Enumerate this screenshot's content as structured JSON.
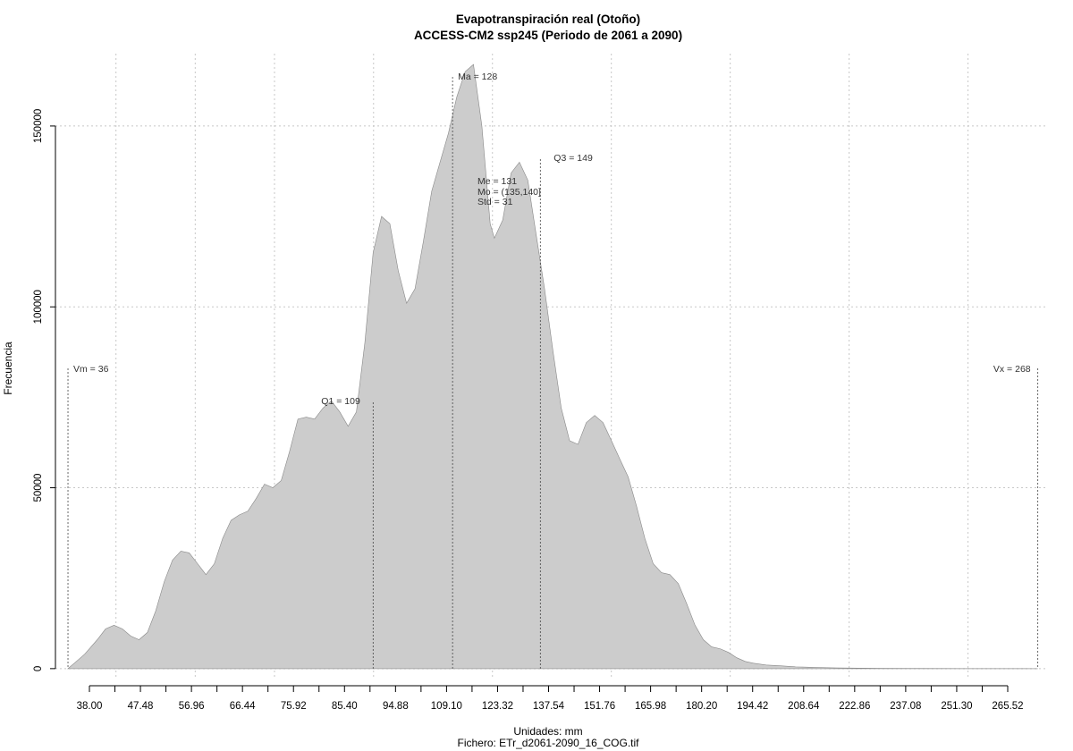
{
  "chart_data": {
    "type": "area",
    "title": "Evapotranspiración real (Otoño)",
    "subtitle": "ACCESS-CM2 ssp245 (Periodo de 2061 a 2090)",
    "xlabel": "Unidades: mm",
    "ylabel": "Frecuencia",
    "footer": "Fichero: ETr_d2061-2090_16_COG.tif",
    "xlim": [
      33,
      270
    ],
    "ylim": [
      -3000,
      170000
    ],
    "grid": true,
    "fill_color": "#cccccc",
    "line_color": "#888888",
    "x_ticks": [
      "38.00",
      "47.48",
      "56.96",
      "66.44",
      "75.92",
      "85.40",
      "94.88",
      "109.10",
      "123.32",
      "137.54",
      "151.76",
      "165.98",
      "180.20",
      "194.42",
      "208.64",
      "222.86",
      "237.08",
      "251.30",
      "265.52"
    ],
    "y_ticks": [
      "0",
      "50000",
      "100000",
      "150000"
    ],
    "y_tick_values": [
      0,
      50000,
      100000,
      150000
    ],
    "x_grid_values": [
      47.48,
      66.44,
      85.4,
      109.1,
      137.54,
      165.98,
      194.42,
      222.86,
      251.3
    ],
    "stats": {
      "vm": {
        "label": "Vm = 36",
        "x": 36
      },
      "q1": {
        "label": "Q1 = 109",
        "x": 109
      },
      "ma": {
        "label": "Ma = 128",
        "x": 128
      },
      "me": {
        "label": "Me = 131"
      },
      "mo": {
        "label": "Mo = (135,140]"
      },
      "std": {
        "label": "Std = 31"
      },
      "q3": {
        "label": "Q3 = 149",
        "x": 149
      },
      "vx": {
        "label": "Vx = 268",
        "x": 268
      }
    },
    "x": [
      36,
      38,
      40,
      43,
      45,
      47,
      49,
      51,
      53,
      55,
      57,
      59,
      61,
      63,
      65,
      67,
      69,
      71,
      73,
      75,
      77,
      79,
      81,
      83,
      85,
      87,
      89,
      91,
      93,
      95,
      97,
      99,
      101,
      103,
      105,
      107,
      109,
      111,
      113,
      115,
      117,
      119,
      121,
      123,
      125,
      127,
      129,
      131,
      133,
      135,
      137,
      138,
      140,
      142,
      144,
      146,
      148,
      150,
      152,
      154,
      156,
      158,
      160,
      162,
      164,
      166,
      168,
      170,
      172,
      174,
      176,
      178,
      180,
      182,
      184,
      186,
      188,
      190,
      192,
      194,
      196,
      198,
      200,
      203,
      206,
      210,
      215,
      220,
      230,
      240,
      250,
      260,
      268
    ],
    "values": [
      0,
      2000,
      4000,
      8000,
      11000,
      12000,
      11000,
      9000,
      8000,
      10000,
      16000,
      24000,
      30000,
      32500,
      32000,
      29000,
      26000,
      29000,
      36000,
      41000,
      42500,
      43500,
      47000,
      51000,
      50000,
      52000,
      60000,
      69000,
      69500,
      69000,
      72000,
      74000,
      71000,
      67000,
      71000,
      90000,
      115000,
      125000,
      123000,
      110000,
      101000,
      105000,
      118000,
      132000,
      140000,
      148000,
      158000,
      165000,
      167000,
      150000,
      123000,
      119000,
      124000,
      137000,
      140000,
      135000,
      120000,
      105000,
      88000,
      72000,
      63000,
      62000,
      68000,
      70000,
      68000,
      63000,
      58000,
      53000,
      45000,
      36000,
      29000,
      26500,
      26000,
      23500,
      18000,
      12000,
      8000,
      6000,
      5500,
      4500,
      3000,
      2000,
      1500,
      1000,
      800,
      500,
      300,
      200,
      100,
      50,
      20,
      10,
      0
    ]
  }
}
